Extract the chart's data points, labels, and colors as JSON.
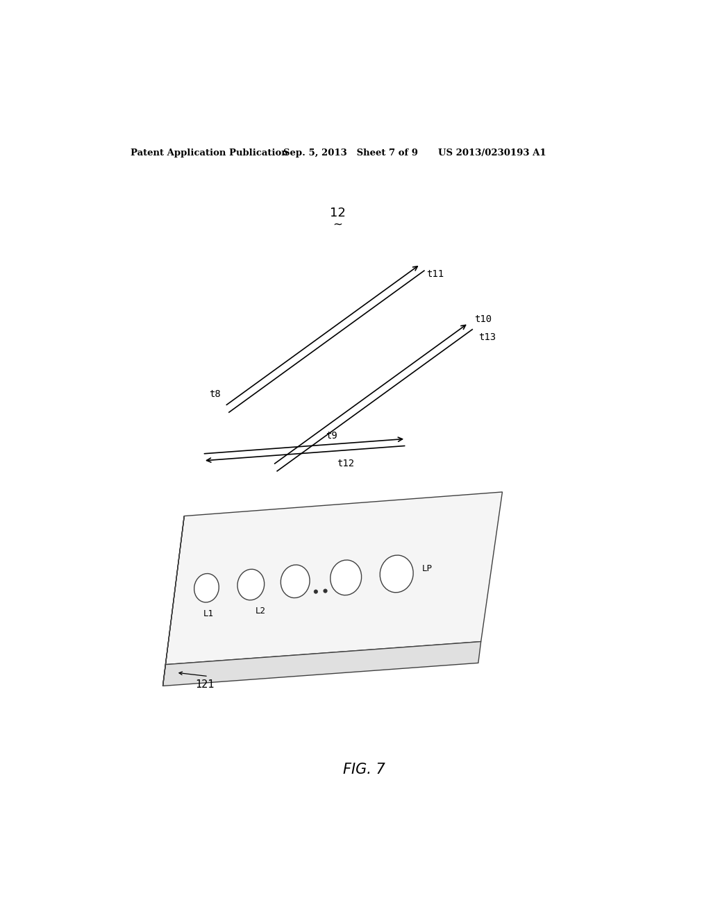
{
  "bg_color": "#ffffff",
  "header_left": "Patent Application Publication",
  "header_mid": "Sep. 5, 2013   Sheet 7 of 9",
  "header_right": "US 2013/0230193 A1",
  "fig_label": "FIG. 7",
  "ref_12": "12",
  "ref_121": "121"
}
